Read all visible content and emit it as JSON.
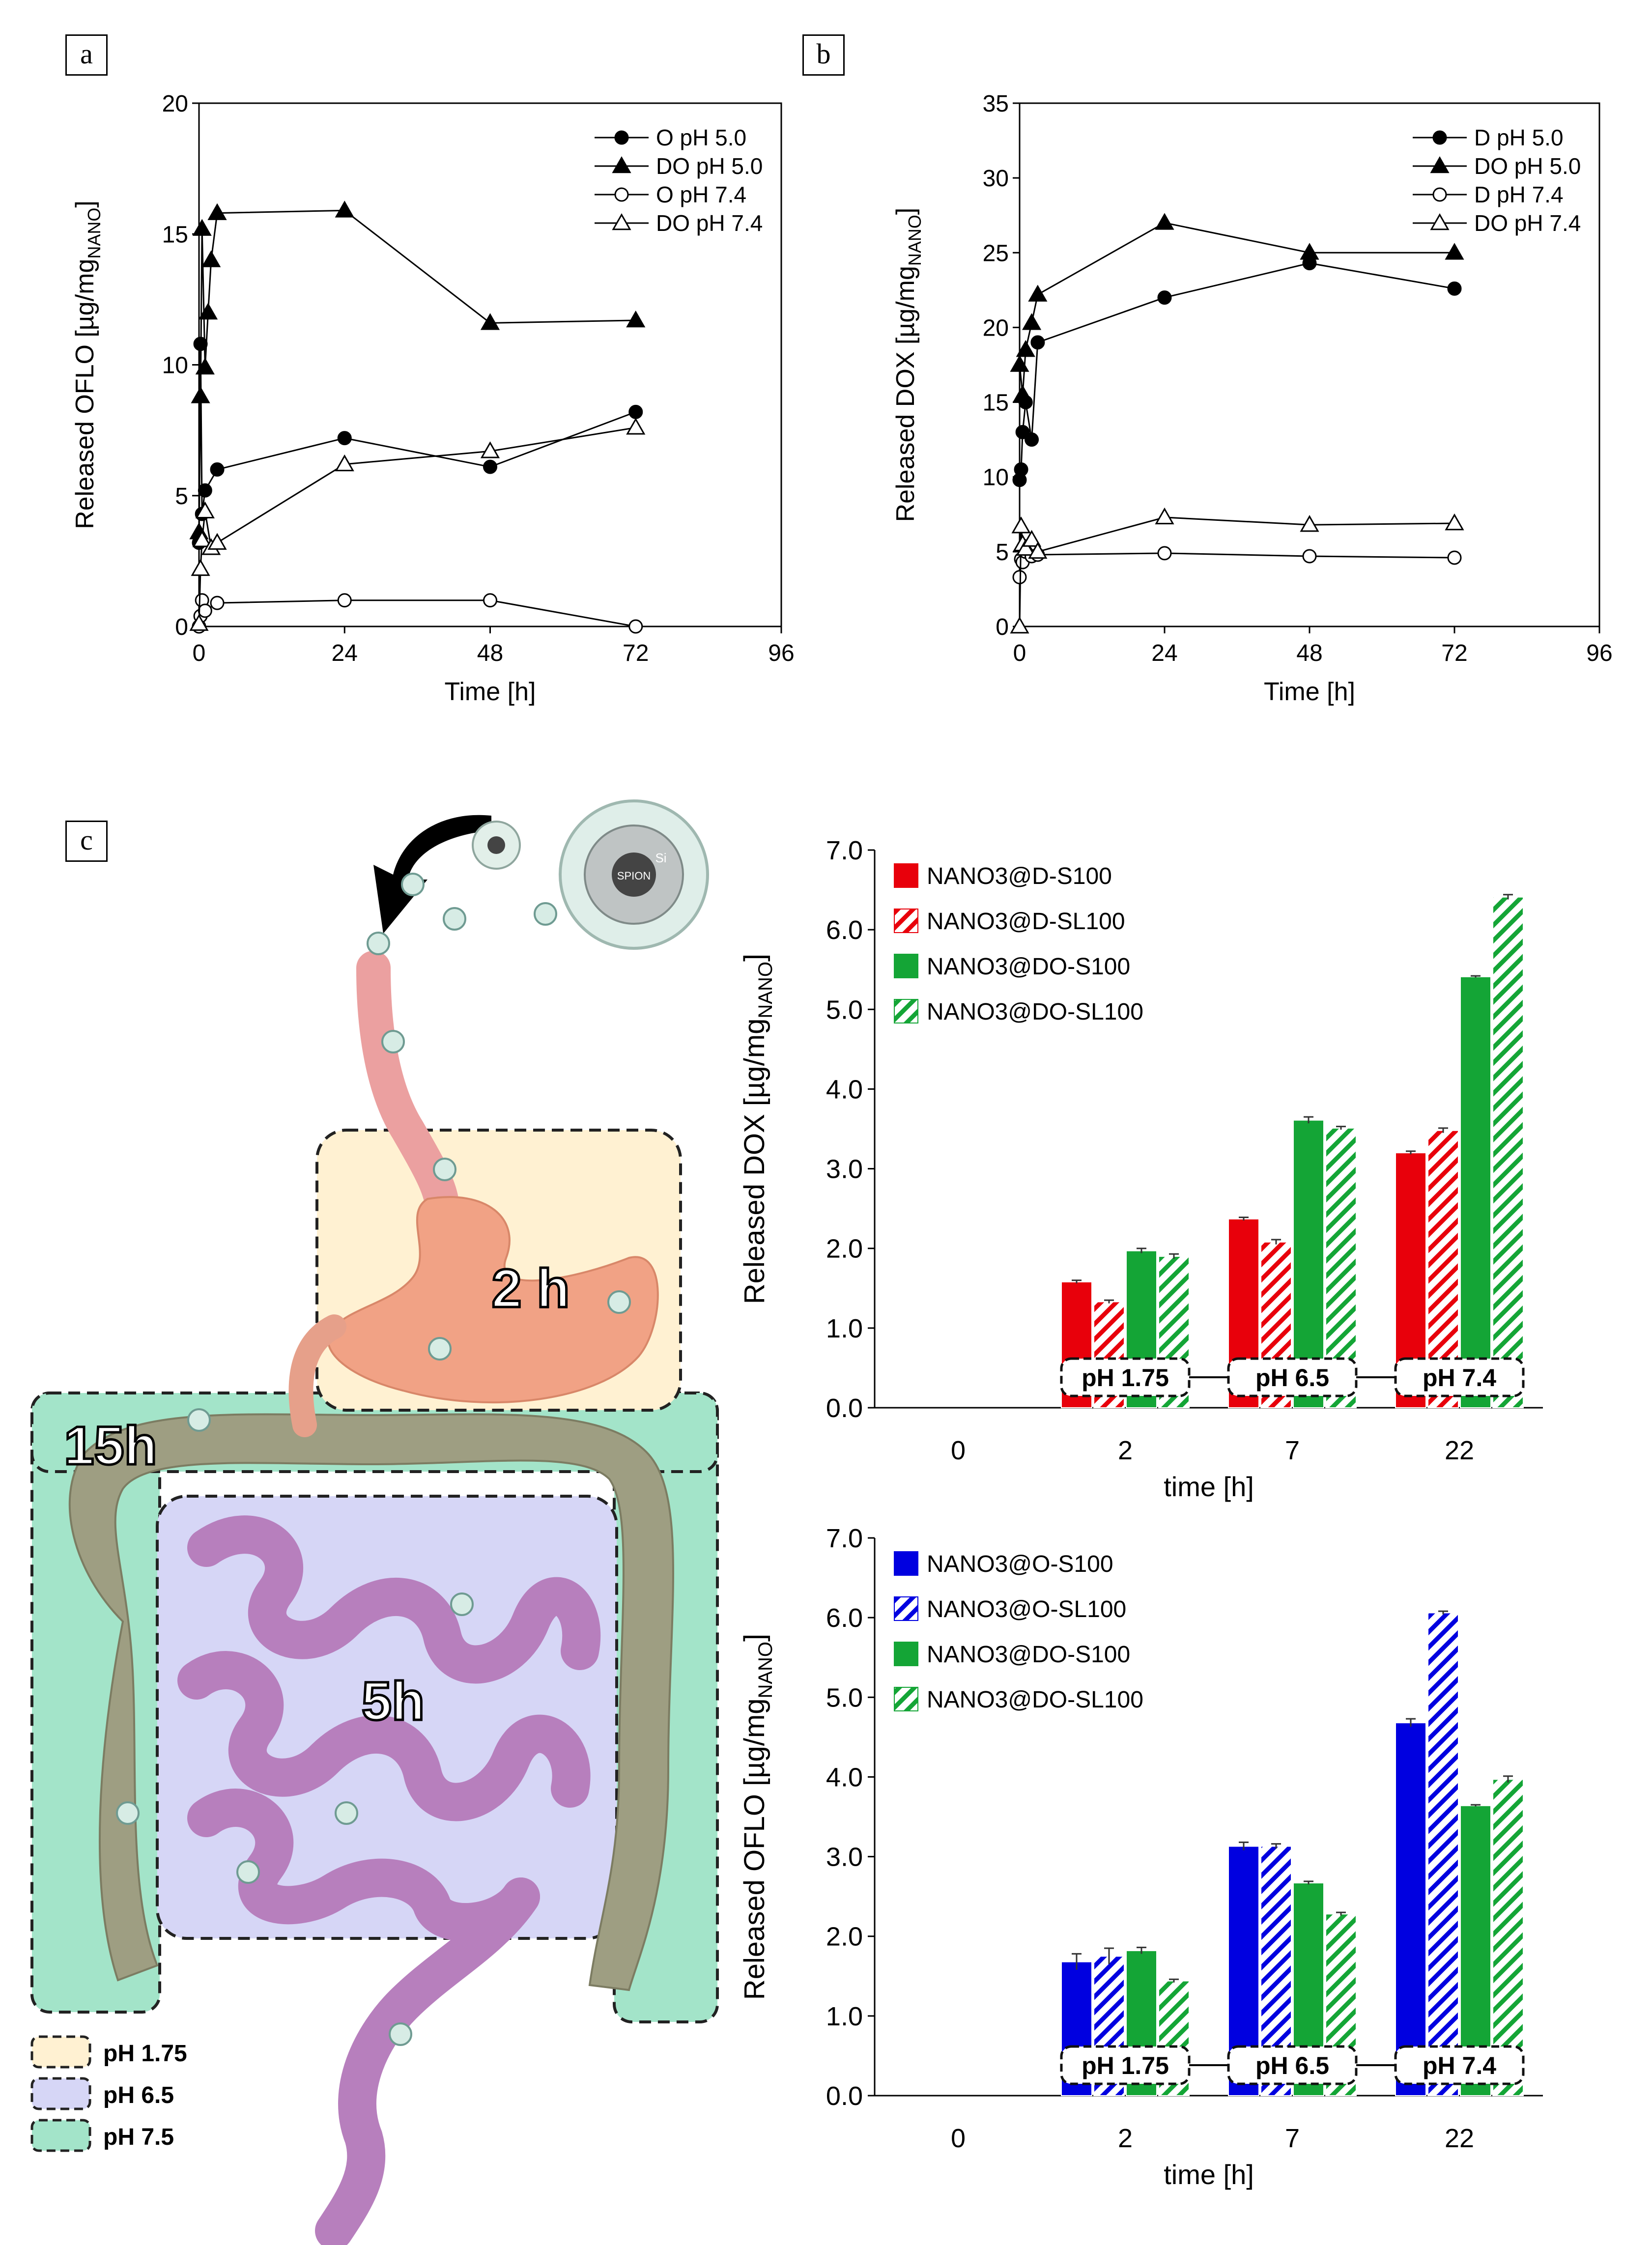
{
  "panels": {
    "a": "a",
    "b": "b",
    "c": "c"
  },
  "colors": {
    "red": "#e8000b",
    "green": "#14a536",
    "blue": "#0000e0",
    "ph175": "#fff1d2",
    "ph65": "#d6d6f6",
    "ph75": "#a3e4c9",
    "stomach": "#f1a285",
    "small_intestine": "#b77fbd",
    "colon": "#9e9e82",
    "esophagus": "#eba0a0"
  },
  "illustration": {
    "time_stomach": "2 h",
    "time_colon": "15h",
    "time_small_intestine": "5h",
    "nanoparticle_core": "SPION",
    "nanoparticle_shell": "Si",
    "legend": [
      {
        "label": "pH 1.75",
        "color": "#fff1d2"
      },
      {
        "label": "pH 6.5",
        "color": "#d6d6f6"
      },
      {
        "label": "pH 7.5",
        "color": "#a3e4c9"
      }
    ]
  },
  "chart_data": [
    {
      "id": "a",
      "type": "line",
      "xlabel": "Time [h]",
      "ylabel": "Released OFLO [µg/mg",
      "ylabel_sub": "NANO",
      "ylabel_end": "]",
      "xlim": [
        0,
        96
      ],
      "ylim": [
        0,
        20
      ],
      "xticks": [
        0,
        24,
        48,
        72,
        96
      ],
      "yticks": [
        0,
        5,
        10,
        15,
        20
      ],
      "series": [
        {
          "name": "O pH 5.0",
          "marker": "circle-filled",
          "x": [
            0,
            0.25,
            0.5,
            1,
            3,
            24,
            48,
            72
          ],
          "y": [
            3.2,
            10.8,
            4.3,
            5.2,
            6.0,
            7.2,
            6.1,
            8.2
          ]
        },
        {
          "name": "DO pH 5.0",
          "marker": "triangle-filled",
          "x": [
            0,
            0.25,
            0.5,
            1,
            1.5,
            2,
            3,
            24,
            48,
            72
          ],
          "y": [
            3.6,
            8.8,
            15.2,
            9.9,
            12.0,
            14.0,
            15.8,
            15.9,
            11.6,
            11.7
          ]
        },
        {
          "name": "O pH 7.4",
          "marker": "circle-open",
          "x": [
            0,
            0.25,
            0.5,
            1,
            3,
            24,
            48,
            72
          ],
          "y": [
            0.0,
            0.4,
            1.0,
            0.6,
            0.9,
            1.0,
            1.0,
            0.0
          ]
        },
        {
          "name": "DO pH 7.4",
          "marker": "triangle-open",
          "x": [
            0,
            0.25,
            0.5,
            1,
            2,
            3,
            24,
            48,
            72
          ],
          "y": [
            0.1,
            2.2,
            3.3,
            4.4,
            3.0,
            3.2,
            6.2,
            6.7,
            7.6
          ]
        }
      ]
    },
    {
      "id": "b",
      "type": "line",
      "xlabel": "Time [h]",
      "ylabel": "Released DOX [µg/mg",
      "ylabel_sub": "NANO",
      "ylabel_end": "]",
      "xlim": [
        0,
        96
      ],
      "ylim": [
        0,
        35
      ],
      "xticks": [
        0,
        24,
        48,
        72,
        96
      ],
      "yticks": [
        0,
        5,
        10,
        15,
        20,
        25,
        30,
        35
      ],
      "series": [
        {
          "name": "D pH 5.0",
          "marker": "circle-filled",
          "x": [
            0,
            0.25,
            0.5,
            1,
            2,
            3,
            24,
            48,
            72
          ],
          "y": [
            9.8,
            10.5,
            13.0,
            15.0,
            12.5,
            19.0,
            22.0,
            24.3,
            22.6
          ]
        },
        {
          "name": "DO pH 5.0",
          "marker": "triangle-filled",
          "x": [
            0,
            0.5,
            1,
            2,
            3,
            24,
            48,
            72
          ],
          "y": [
            17.5,
            15.5,
            18.5,
            20.3,
            22.2,
            27.0,
            25.0,
            25.0
          ]
        },
        {
          "name": "D pH 7.4",
          "marker": "circle-open",
          "x": [
            0,
            0.25,
            0.5,
            1,
            2,
            3,
            24,
            48,
            72
          ],
          "y": [
            3.3,
            4.5,
            4.3,
            5.0,
            4.7,
            4.8,
            4.9,
            4.7,
            4.6
          ]
        },
        {
          "name": "DO pH 7.4",
          "marker": "triangle-open",
          "x": [
            0,
            0.25,
            0.5,
            1,
            2,
            3,
            24,
            48,
            72
          ],
          "y": [
            0.0,
            6.7,
            5.5,
            5.2,
            5.8,
            5.0,
            7.3,
            6.8,
            6.9
          ]
        }
      ]
    },
    {
      "id": "c-dox",
      "type": "bar",
      "xlabel": "time [h]",
      "ylabel": "Released DOX [µg/mg",
      "ylabel_sub": "NANO",
      "ylabel_end": "]",
      "categories": [
        "0",
        "2",
        "7",
        "22"
      ],
      "ylim": [
        0,
        7
      ],
      "yticks": [
        "0.0",
        "1.0",
        "2.0",
        "3.0",
        "4.0",
        "5.0",
        "6.0",
        "7.0"
      ],
      "ph_labels": [
        "pH 1.75",
        "pH 6.5",
        "pH 7.4"
      ],
      "series": [
        {
          "name": "NANO3@D-S100",
          "color": "#e8000b",
          "hatch": false,
          "values": [
            0,
            1.58,
            2.37,
            3.2
          ],
          "errors": [
            0,
            0.02,
            0.02,
            0.02
          ]
        },
        {
          "name": "NANO3@D-SL100",
          "color": "#e8000b",
          "hatch": true,
          "values": [
            0,
            1.33,
            2.08,
            3.48
          ],
          "errors": [
            0,
            0.02,
            0.03,
            0.03
          ]
        },
        {
          "name": "NANO3@DO-S100",
          "color": "#14a536",
          "hatch": false,
          "values": [
            0,
            1.97,
            3.61,
            5.41
          ],
          "errors": [
            0,
            0.03,
            0.04,
            0.01
          ]
        },
        {
          "name": "NANO3@DO-SL100",
          "color": "#14a536",
          "hatch": true,
          "values": [
            0,
            1.9,
            3.51,
            6.41
          ],
          "errors": [
            0,
            0.03,
            0.02,
            0.03
          ]
        }
      ]
    },
    {
      "id": "c-oflo",
      "type": "bar",
      "xlabel": "time [h]",
      "ylabel": "Released OFLO [µg/mg",
      "ylabel_sub": "NANO",
      "ylabel_end": "]",
      "categories": [
        "0",
        "2",
        "7",
        "22"
      ],
      "ylim": [
        0,
        7
      ],
      "yticks": [
        "0.0",
        "1.0",
        "2.0",
        "3.0",
        "4.0",
        "5.0",
        "6.0",
        "7.0"
      ],
      "ph_labels": [
        "pH 1.75",
        "pH 6.5",
        "pH 7.4"
      ],
      "series": [
        {
          "name": "NANO3@O-S100",
          "color": "#0000e0",
          "hatch": false,
          "values": [
            0,
            1.68,
            3.13,
            4.68
          ],
          "errors": [
            0,
            0.1,
            0.05,
            0.05
          ]
        },
        {
          "name": "NANO3@O-SL100",
          "color": "#0000e0",
          "hatch": true,
          "values": [
            0,
            1.75,
            3.13,
            6.06
          ],
          "errors": [
            0,
            0.1,
            0.03,
            0.02
          ]
        },
        {
          "name": "NANO3@DO-S100",
          "color": "#14a536",
          "hatch": false,
          "values": [
            0,
            1.82,
            2.67,
            3.64
          ],
          "errors": [
            0,
            0.04,
            0.02,
            0.01
          ]
        },
        {
          "name": "NANO3@DO-SL100",
          "color": "#14a536",
          "hatch": true,
          "values": [
            0,
            1.44,
            2.28,
            3.97
          ],
          "errors": [
            0,
            0.02,
            0.02,
            0.04
          ]
        }
      ]
    }
  ]
}
